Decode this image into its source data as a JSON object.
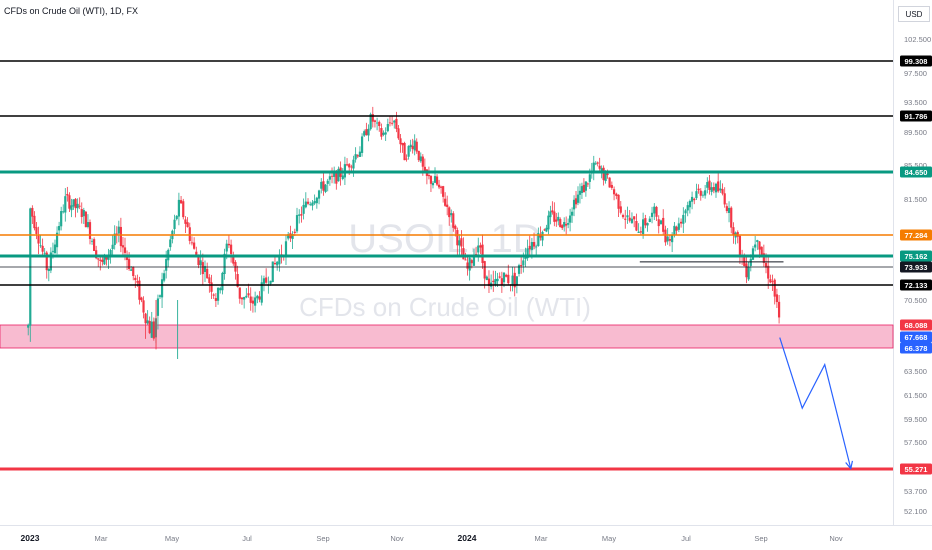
{
  "header": {
    "title": "CFDs on Crude Oil (WTI), 1D, FX",
    "currency": "USD"
  },
  "watermark": {
    "symbol": "USOIL, 1D",
    "description": "CFDs on Crude Oil (WTI)"
  },
  "colors": {
    "up": "#22ab94",
    "down": "#f23645",
    "black_line": "#000000",
    "teal_line": "#089981",
    "orange_line": "#f57c00",
    "red_line": "#f23645",
    "zone_fill": "#f8bbd0",
    "zone_border": "#e91e63",
    "projection": "#2962ff",
    "axis_text": "#787b86"
  },
  "chart_data": {
    "type": "candlestick",
    "symbol": "USOIL",
    "timeframe": "1D",
    "x_ticks": [
      "2023",
      "Mar",
      "May",
      "Jul",
      "Sep",
      "Nov",
      "2024",
      "Mar",
      "May",
      "Jul",
      "Sep",
      "Nov"
    ],
    "y_ticks": [
      "102.500",
      "97.500",
      "93.500",
      "89.500",
      "85.500",
      "81.500",
      "70.500",
      "63.500",
      "61.500",
      "59.500",
      "57.500",
      "53.700",
      "52.100"
    ],
    "ylim": [
      50.5,
      105.0
    ],
    "horizontal_levels": [
      {
        "label": "99.308",
        "price": 99.308,
        "style": "black"
      },
      {
        "label": "91.786",
        "price": 91.786,
        "style": "black"
      },
      {
        "label": "84.650",
        "price": 84.65,
        "style": "teal"
      },
      {
        "label": "77.284",
        "price": 77.284,
        "style": "orange"
      },
      {
        "label": "75.162",
        "price": 75.162,
        "style": "teal"
      },
      {
        "label": "73.933",
        "price": 73.933,
        "style": "thin"
      },
      {
        "label": "72.133",
        "price": 72.133,
        "style": "black"
      },
      {
        "label": "55.271",
        "price": 55.271,
        "style": "red"
      }
    ],
    "zone": {
      "top_label": "68.088",
      "top": 68.088,
      "bottom_label": "66.378",
      "bottom": 66.378
    },
    "last_price": {
      "label": "67.668",
      "price": 67.668
    },
    "short_segment": {
      "price": 74.5,
      "from_month": 16.8,
      "to_month": 20.6
    },
    "projection_path": [
      {
        "month": 20.5,
        "price": 67.6
      },
      {
        "month": 21.1,
        "price": 60.4
      },
      {
        "month": 21.7,
        "price": 64.3
      },
      {
        "month": 22.4,
        "price": 55.3
      }
    ],
    "price_path": [
      [
        0,
        80.5
      ],
      [
        0.5,
        73.5
      ],
      [
        1.0,
        81.5
      ],
      [
        1.5,
        79.8
      ],
      [
        2.0,
        74.0
      ],
      [
        2.5,
        77.5
      ],
      [
        3.0,
        72.0
      ],
      [
        3.3,
        68.5
      ],
      [
        3.5,
        67.8
      ],
      [
        3.8,
        74.0
      ],
      [
        4.2,
        81.0
      ],
      [
        4.6,
        75.5
      ],
      [
        4.9,
        73.5
      ],
      [
        5.2,
        70.5
      ],
      [
        5.5,
        77.0
      ],
      [
        5.8,
        71.0
      ],
      [
        6.2,
        70.2
      ],
      [
        6.5,
        72.5
      ],
      [
        7.0,
        76.0
      ],
      [
        7.5,
        80.5
      ],
      [
        8.0,
        83.0
      ],
      [
        8.5,
        84.5
      ],
      [
        9.0,
        87.5
      ],
      [
        9.3,
        91.5
      ],
      [
        9.6,
        89.0
      ],
      [
        9.9,
        91.5
      ],
      [
        10.2,
        86.5
      ],
      [
        10.5,
        88.5
      ],
      [
        10.8,
        84.0
      ],
      [
        11.1,
        83.5
      ],
      [
        11.5,
        80.0
      ],
      [
        11.8,
        76.0
      ],
      [
        12.0,
        73.5
      ],
      [
        12.3,
        76.5
      ],
      [
        12.6,
        71.5
      ],
      [
        12.9,
        73.0
      ],
      [
        13.3,
        72.5
      ],
      [
        13.6,
        76.0
      ],
      [
        13.9,
        77.0
      ],
      [
        14.3,
        79.5
      ],
      [
        14.7,
        78.5
      ],
      [
        15.0,
        81.5
      ],
      [
        15.3,
        83.0
      ],
      [
        15.6,
        85.5
      ],
      [
        16.0,
        83.5
      ],
      [
        16.4,
        79.5
      ],
      [
        16.8,
        78.0
      ],
      [
        17.2,
        80.0
      ],
      [
        17.5,
        77.0
      ],
      [
        17.8,
        78.5
      ],
      [
        18.1,
        81.5
      ],
      [
        18.4,
        82.5
      ],
      [
        18.7,
        83.0
      ],
      [
        19.0,
        82.0
      ],
      [
        19.3,
        77.5
      ],
      [
        19.6,
        73.5
      ],
      [
        19.9,
        77.5
      ],
      [
        20.1,
        74.0
      ],
      [
        20.3,
        72.5
      ],
      [
        20.5,
        68.0
      ]
    ]
  }
}
